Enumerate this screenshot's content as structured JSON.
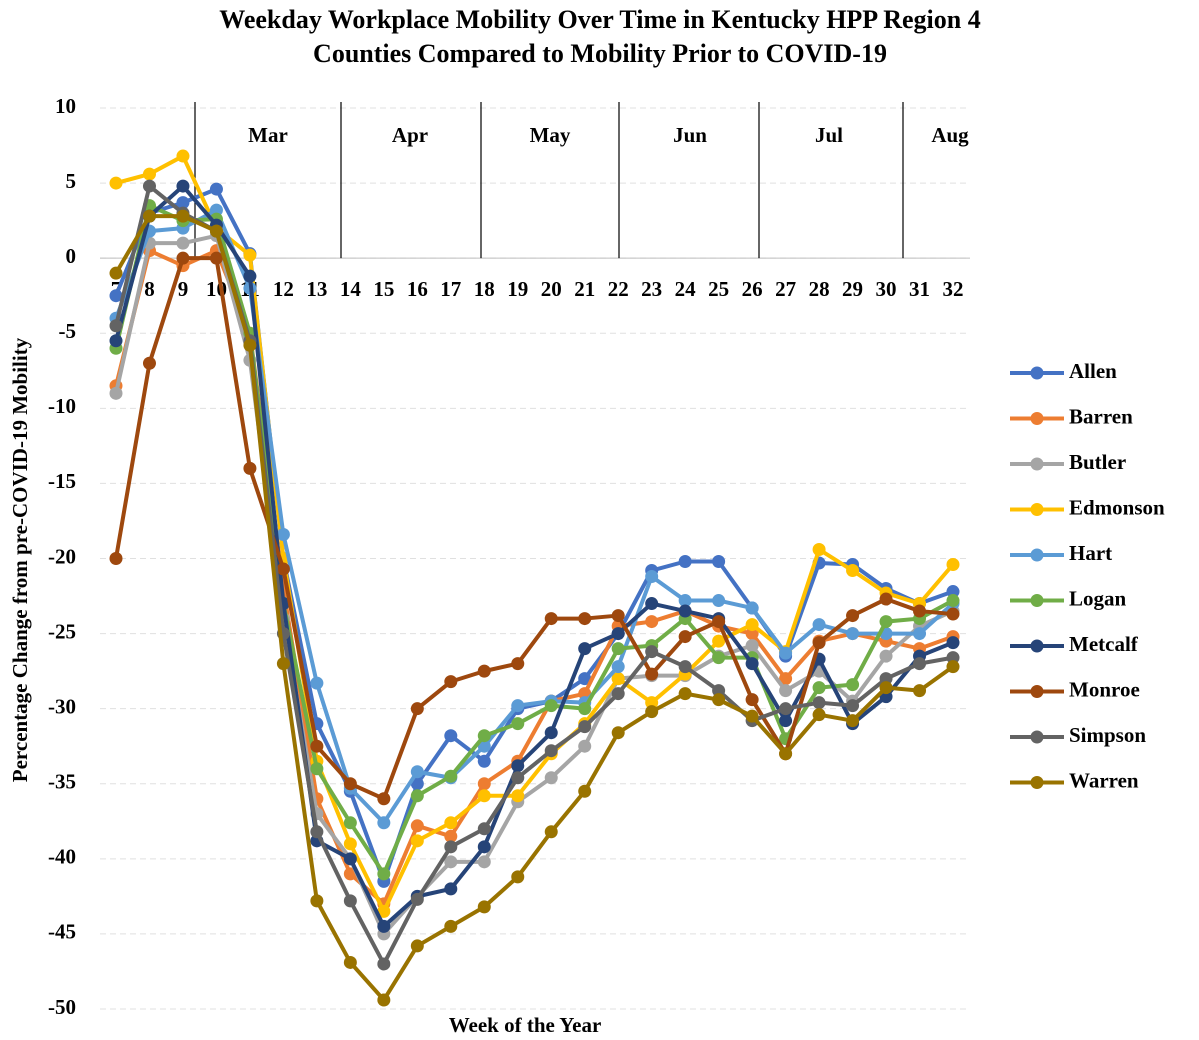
{
  "chart_data": {
    "type": "line",
    "title": [
      "Weekday Workplace Mobility Over Time in Kentucky HPP Region 4",
      "Counties Compared to Mobility Prior to COVID-19"
    ],
    "xlabel": "Week of the Year",
    "ylabel": "Percentage Change from pre-COVID-19 Mobility",
    "months": [
      "Mar",
      "Apr",
      "May",
      "Jun",
      "Jul",
      "Aug"
    ],
    "categories": [
      "7",
      "8",
      "9",
      "10",
      "11",
      "12",
      "13",
      "14",
      "15",
      "16",
      "17",
      "18",
      "19",
      "20",
      "21",
      "22",
      "23",
      "24",
      "25",
      "26",
      "27",
      "28",
      "29",
      "30",
      "31",
      "32"
    ],
    "ylim": [
      -50,
      10
    ],
    "yticks": [
      -50,
      -45,
      -40,
      -35,
      -30,
      -25,
      -20,
      -15,
      -10,
      -5,
      0,
      5,
      10
    ],
    "grid": true,
    "legend": "right",
    "series": [
      {
        "name": "Allen",
        "color": "#4472c4",
        "values": [
          -2.5,
          3,
          3.7,
          4.6,
          0.3,
          -20,
          -31,
          -35.5,
          -41.5,
          -35,
          -31.8,
          -33.5,
          -30,
          -29.5,
          -28,
          -25,
          -20.8,
          -20.2,
          -20.2,
          -23.3,
          -26.5,
          -20.3,
          -20.4,
          -22,
          -23,
          -22.2
        ]
      },
      {
        "name": "Barren",
        "color": "#ed7d31",
        "values": [
          -8.5,
          0.5,
          -0.5,
          0.5,
          -5,
          -22,
          -36,
          -41,
          -43,
          -37.8,
          -38.5,
          -35,
          -33.5,
          -29.5,
          -29,
          -24.5,
          -24.2,
          -23.5,
          -24.5,
          -25,
          -28,
          -25.5,
          -25,
          -25.5,
          -26,
          -25.2
        ]
      },
      {
        "name": "Butler",
        "color": "#a5a5a5",
        "values": [
          -9,
          1,
          1,
          1.5,
          -6.8,
          -24,
          -37,
          -40,
          -45,
          -42.5,
          -40.2,
          -40.2,
          -36.2,
          -34.6,
          -32.5,
          -28,
          -27.8,
          -27.8,
          -26.5,
          -25.8,
          -28.8,
          -27.5,
          -29.5,
          -26.5,
          -24.5,
          -23.5
        ]
      },
      {
        "name": "Edmonson",
        "color": "#ffc000",
        "values": [
          5,
          5.6,
          6.8,
          2,
          0.2,
          -20,
          -33.5,
          -39,
          -43.5,
          -38.8,
          -37.6,
          -35.8,
          -35.8,
          -33,
          -31,
          -28,
          -29.6,
          -27.7,
          -25.5,
          -24.4,
          -26.2,
          -19.4,
          -20.8,
          -22.3,
          -23,
          -20.4
        ]
      },
      {
        "name": "Hart",
        "color": "#5b9bd5",
        "values": [
          -4,
          1.8,
          2,
          3.2,
          -2,
          -18.4,
          -28.3,
          -35.3,
          -37.6,
          -34.2,
          -34.6,
          -32.5,
          -29.8,
          -29.5,
          -29.6,
          -27.2,
          -21.2,
          -22.8,
          -22.8,
          -23.3,
          -26.3,
          -24.4,
          -25,
          -25,
          -25,
          -23
        ]
      },
      {
        "name": "Logan",
        "color": "#70ad47",
        "values": [
          -6,
          3.5,
          2.5,
          2.6,
          -5,
          -23,
          -34,
          -37.6,
          -41,
          -35.8,
          -34.5,
          -31.8,
          -31,
          -29.8,
          -30,
          -26,
          -25.8,
          -24,
          -26.6,
          -26.6,
          -32,
          -28.6,
          -28.4,
          -24.2,
          -24,
          -22.8
        ]
      },
      {
        "name": "Metcalf",
        "color": "#264478",
        "values": [
          -5.5,
          2.8,
          4.8,
          2.2,
          -1.2,
          -23,
          -38.8,
          -40,
          -44.5,
          -42.5,
          -42,
          -39.2,
          -33.8,
          -31.6,
          -26,
          -25,
          -23,
          -23.5,
          -24,
          -27,
          -30.8,
          -26.7,
          -31,
          -29.2,
          -26.5,
          -25.6
        ]
      },
      {
        "name": "Monroe",
        "color": "#9e480e",
        "values": [
          -20,
          -7,
          0,
          0,
          -14,
          -20.7,
          -32.5,
          -35,
          -36,
          -30,
          -28.2,
          -27.5,
          -27,
          -24,
          -24,
          -23.8,
          -27.7,
          -25.2,
          -24.2,
          -29.4,
          -33,
          -25.6,
          -23.8,
          -22.7,
          -23.5,
          -23.7
        ]
      },
      {
        "name": "Simpson",
        "color": "#636363",
        "values": [
          -4.5,
          4.8,
          3,
          1.8,
          -5.5,
          -25,
          -38.2,
          -42.8,
          -47,
          -42.7,
          -39.2,
          -38,
          -34.6,
          -32.8,
          -31.2,
          -29,
          -26.2,
          -27.2,
          -28.8,
          -30.8,
          -30,
          -29.6,
          -29.8,
          -28,
          -27,
          -26.6
        ]
      },
      {
        "name": "Warren",
        "color": "#997300",
        "values": [
          -1,
          2.8,
          2.8,
          1.8,
          -5.8,
          -27,
          -42.8,
          -46.9,
          -49.4,
          -45.8,
          -44.5,
          -43.2,
          -41.2,
          -38.2,
          -35.5,
          -31.6,
          -30.2,
          -29,
          -29.4,
          -30.5,
          -33,
          -30.4,
          -30.8,
          -28.6,
          -28.8,
          -27.2
        ]
      }
    ]
  }
}
